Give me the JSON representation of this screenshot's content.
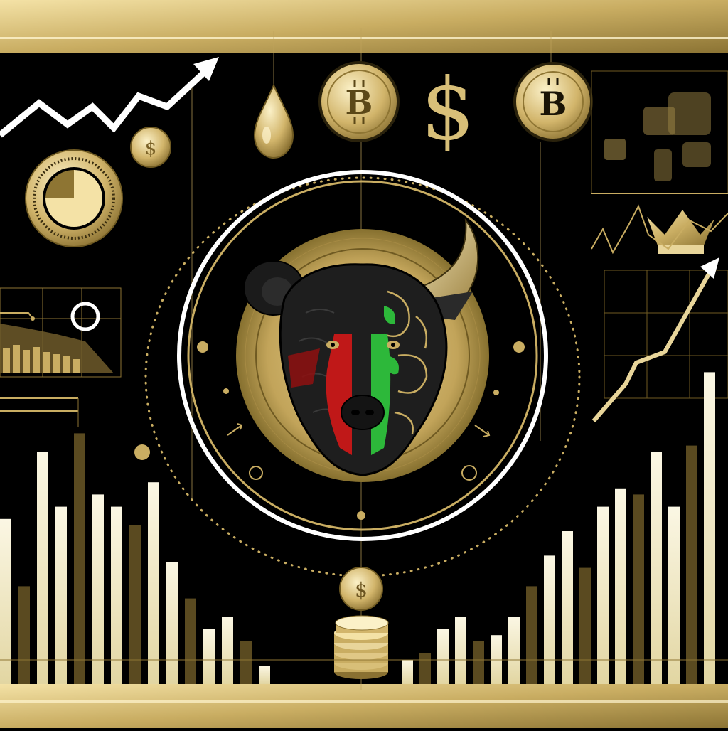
{
  "palette": {
    "background": "#000000",
    "gold": "#c9ad62",
    "gold_light": "#e8d59a",
    "gold_dark": "#8c7434",
    "cream": "#f5f0d6",
    "white": "#ffffff",
    "red": "#c01818",
    "green": "#2db83a"
  },
  "icons": {
    "bitcoin_coin_left": "bitcoin-coin-icon",
    "bitcoin_coin_right": "bitcoin-coin-icon",
    "dollar_sign": "dollar-sign-icon",
    "oil_drop": "oil-drop-icon",
    "pie_chart_coin": "pie-chart-coin-icon",
    "crown": "crown-icon",
    "world_map": "world-map-icon",
    "bull_bear_emblem": "bull-bear-head-icon",
    "coin_stack": "coin-stack-icon"
  },
  "coin_symbols": {
    "bitcoin": "B",
    "dollar": "$"
  },
  "bar_chart_left": [
    0.27,
    0.16,
    0.38,
    0.29,
    0.41,
    0.31,
    0.29,
    0.26,
    0.33,
    0.2,
    0.14,
    0.09,
    0.11,
    0.07,
    0.03
  ],
  "bar_chart_right": [
    0.04,
    0.05,
    0.09,
    0.11,
    0.07,
    0.08,
    0.11,
    0.16,
    0.21,
    0.25,
    0.19,
    0.29,
    0.32,
    0.31,
    0.38,
    0.29,
    0.39,
    0.51
  ]
}
